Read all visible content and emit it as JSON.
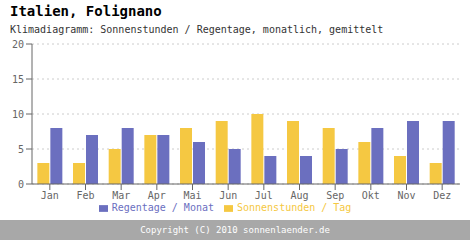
{
  "chart_data": {
    "type": "bar",
    "title": "Italien, Folignano",
    "subtitle": "Klimadiagramm: Sonnenstunden / Regentage, monatlich, gemittelt",
    "categories": [
      "Jan",
      "Feb",
      "Mar",
      "Apr",
      "Mai",
      "Jun",
      "Jul",
      "Aug",
      "Sep",
      "Okt",
      "Nov",
      "Dez"
    ],
    "series": [
      {
        "name": "Sonnenstunden / Tag",
        "color": "#F5C842",
        "values": [
          3,
          3,
          5,
          7,
          8,
          9,
          10,
          9,
          8,
          6,
          4,
          3
        ]
      },
      {
        "name": "Regentage / Monat",
        "color": "#6B6FBF",
        "values": [
          8,
          7,
          8,
          7,
          6,
          5,
          4,
          4,
          5,
          8,
          9,
          9
        ]
      }
    ],
    "ylim": [
      0,
      20
    ],
    "yticks": [
      0,
      5,
      10,
      15,
      20
    ],
    "grid": true,
    "legend": "bottom",
    "annotations": [
      "Copyright (C) 2010 sonnenlaender.de"
    ]
  }
}
